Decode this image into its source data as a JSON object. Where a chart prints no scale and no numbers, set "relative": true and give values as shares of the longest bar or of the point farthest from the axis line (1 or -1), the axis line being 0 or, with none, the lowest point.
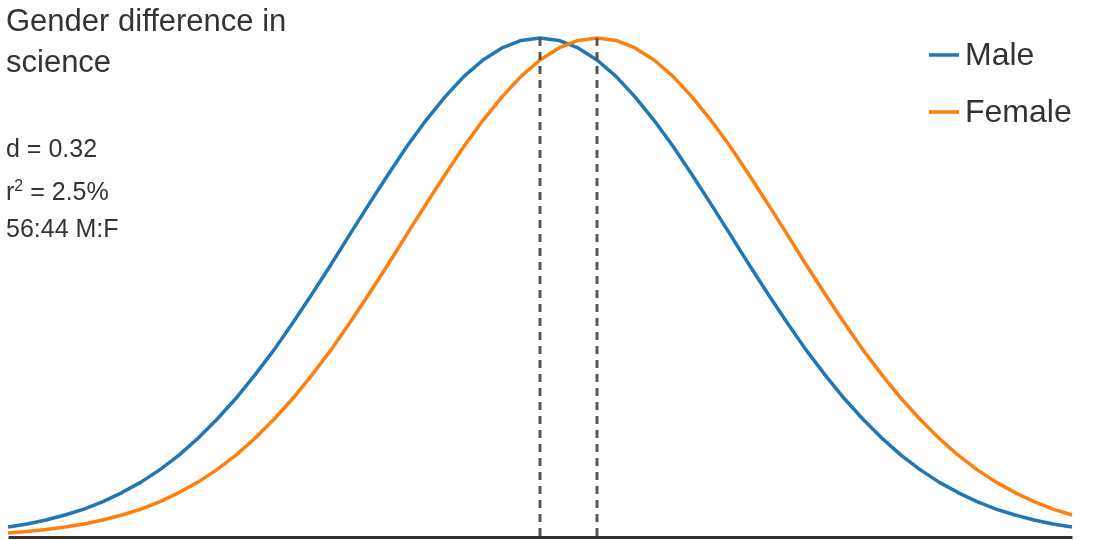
{
  "chart_data": {
    "type": "line",
    "title": "Gender difference in science",
    "relative": true,
    "legend": "top right",
    "grid": false,
    "marker": "none",
    "line_style": "solid",
    "categories": [
      null,
      null,
      null,
      null,
      null,
      null,
      null,
      null,
      null,
      null,
      null,
      null,
      null,
      null,
      null,
      null,
      null,
      null,
      null,
      null,
      null,
      null,
      null,
      null,
      null,
      null,
      null,
      null,
      null,
      null,
      null,
      null,
      null,
      null,
      null,
      null,
      null,
      null,
      null,
      null,
      null,
      null,
      null,
      null,
      null,
      null,
      null,
      null,
      null,
      null,
      null,
      null,
      null,
      null,
      null,
      null,
      null
    ],
    "series": [
      {
        "name": "Male",
        "color": "#1f77b4",
        "values": [
          0.02,
          0.026,
          0.034,
          0.044,
          0.056,
          0.071,
          0.089,
          0.11,
          0.135,
          0.164,
          0.198,
          0.236,
          0.278,
          0.325,
          0.375,
          0.43,
          0.487,
          0.546,
          0.607,
          0.667,
          0.726,
          0.783,
          0.835,
          0.882,
          0.923,
          0.956,
          0.98,
          0.995,
          1,
          0.995,
          0.98,
          0.956,
          0.923,
          0.882,
          0.835,
          0.783,
          0.726,
          0.667,
          0.607,
          0.546,
          0.487,
          0.43,
          0.375,
          0.325,
          0.278,
          0.236,
          0.198,
          0.164,
          0.135,
          0.11,
          0.089,
          0.071,
          0.056,
          0.044,
          0.034,
          0.026,
          0.02
        ]
      },
      {
        "name": "Female",
        "color": "#ff7f0e",
        "values": [
          0.008,
          0.011,
          0.015,
          0.02,
          0.026,
          0.034,
          0.044,
          0.056,
          0.071,
          0.089,
          0.11,
          0.135,
          0.164,
          0.198,
          0.236,
          0.278,
          0.325,
          0.375,
          0.43,
          0.487,
          0.546,
          0.607,
          0.667,
          0.726,
          0.783,
          0.835,
          0.882,
          0.923,
          0.956,
          0.98,
          0.995,
          1,
          0.995,
          0.98,
          0.956,
          0.923,
          0.882,
          0.835,
          0.783,
          0.726,
          0.667,
          0.607,
          0.546,
          0.487,
          0.43,
          0.375,
          0.325,
          0.278,
          0.236,
          0.198,
          0.164,
          0.135,
          0.11,
          0.089,
          0.071,
          0.056,
          0.044
        ]
      }
    ],
    "annotations": [
      "d = 0.32",
      "r$^{2}$ = 2.5%",
      "56:44 M:F"
    ]
  }
}
